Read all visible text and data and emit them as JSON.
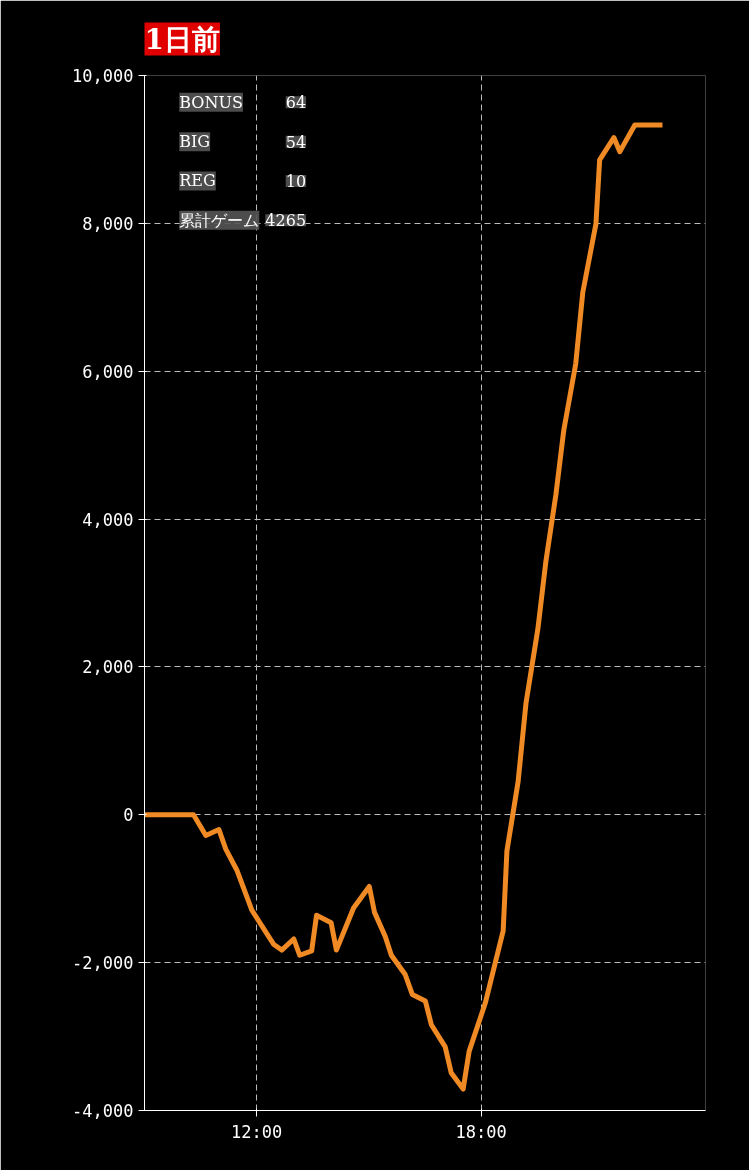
{
  "chart_data": {
    "type": "line",
    "title": "1日前",
    "x": [
      9.0,
      10.31,
      10.64,
      10.99,
      11.17,
      11.47,
      11.87,
      12.45,
      12.67,
      12.99,
      13.15,
      13.47,
      13.6,
      13.99,
      14.13,
      14.59,
      15.01,
      15.15,
      15.44,
      15.6,
      15.97,
      16.16,
      16.51,
      16.67,
      17.04,
      17.2,
      17.52,
      17.68,
      18.11,
      18.59,
      18.69,
      18.99,
      19.2,
      19.52,
      19.73,
      20.0,
      20.21,
      20.53,
      20.72,
      21.07,
      21.17,
      21.55,
      21.71,
      22.11,
      22.85
    ],
    "series": [
      {
        "color": "#f08a24",
        "values": [
          0,
          0,
          -280,
          -200,
          -460,
          -750,
          -1290,
          -1750,
          -1830,
          -1680,
          -1900,
          -1840,
          -1360,
          -1460,
          -1830,
          -1260,
          -970,
          -1320,
          -1650,
          -1900,
          -2160,
          -2430,
          -2520,
          -2840,
          -3140,
          -3490,
          -3710,
          -3200,
          -2550,
          -1570,
          -490,
          450,
          1510,
          2520,
          3420,
          4330,
          5200,
          6100,
          7070,
          7990,
          8860,
          9160,
          8970,
          9330,
          9330
        ]
      }
    ],
    "xlim": [
      9,
      24
    ],
    "xticks": [
      {
        "value": 12,
        "label": "12:00"
      },
      {
        "value": 18,
        "label": "18:00"
      }
    ],
    "ylim": [
      -4000,
      10000
    ],
    "yticks": [
      {
        "value": -4000,
        "label": "-4,000"
      },
      {
        "value": -2000,
        "label": "-2,000"
      },
      {
        "value": 0,
        "label": "0"
      },
      {
        "value": 2000,
        "label": "2,000"
      },
      {
        "value": 4000,
        "label": "4,000"
      },
      {
        "value": 6000,
        "label": "6,000"
      },
      {
        "value": 8000,
        "label": "8,000"
      },
      {
        "value": 10000,
        "label": "10,000"
      }
    ],
    "grid": true,
    "line_style": "solid",
    "marker": "none",
    "annotations": [
      "BONUS 64",
      "BIG 54",
      "REG 10",
      "累計ゲーム 4265"
    ]
  }
}
